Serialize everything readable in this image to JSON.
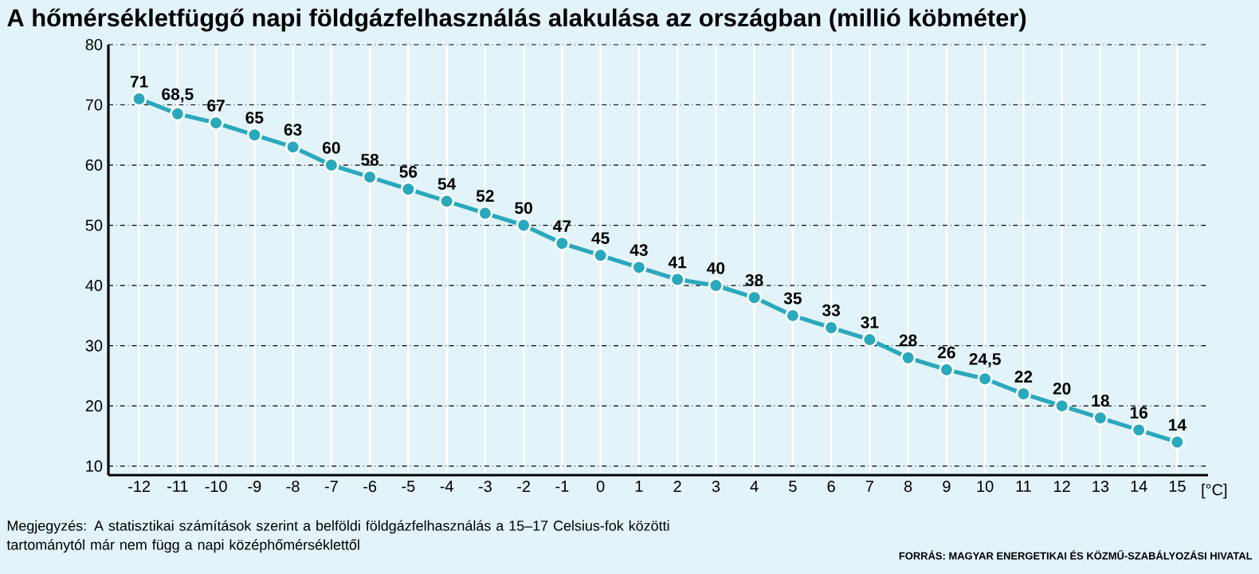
{
  "chart_data": {
    "type": "line",
    "title": "A hőmérsékletfüggő napi földgázfelhasználás alakulása az országban (millió köbméter)",
    "xlabel": "[°C]",
    "x": [
      -12,
      -11,
      -10,
      -9,
      -8,
      -7,
      -6,
      -5,
      -4,
      -3,
      -2,
      -1,
      0,
      1,
      2,
      3,
      4,
      5,
      6,
      7,
      8,
      9,
      10,
      11,
      12,
      13,
      14,
      15
    ],
    "series": [
      {
        "color": "#2aa8bc",
        "values": [
          71,
          68.5,
          67,
          65,
          63,
          60,
          58,
          56,
          54,
          52,
          50,
          47,
          45,
          43,
          41,
          40,
          38,
          35,
          33,
          31,
          28,
          26,
          24.5,
          22,
          20,
          18,
          16,
          14
        ],
        "value_labels": [
          "71",
          "68,5",
          "67",
          "65",
          "63",
          "60",
          "58",
          "56",
          "54",
          "52",
          "50",
          "47",
          "45",
          "43",
          "41",
          "40",
          "38",
          "35",
          "33",
          "31",
          "28",
          "26",
          "24,5",
          "22",
          "20",
          "18",
          "16",
          "14"
        ]
      }
    ],
    "xlim": [
      -12.8,
      15.8
    ],
    "ylim": [
      8.5,
      80
    ],
    "xticks": [
      -12,
      -11,
      -10,
      -9,
      -8,
      -7,
      -6,
      -5,
      -4,
      -3,
      -2,
      -1,
      0,
      1,
      2,
      3,
      4,
      5,
      6,
      7,
      8,
      9,
      10,
      11,
      12,
      13,
      14,
      15
    ],
    "yticks": [
      10,
      20,
      30,
      40,
      50,
      60,
      70,
      80
    ],
    "grid": true,
    "marker": "circle",
    "line_style": "solid",
    "annotations": [
      "Megjegyzés: A statisztikai számítások szerint a belföldi földgázfelhasználás a 15–17 Celsius-fok közötti tartománytól már nem függ a napi középhőmérséklettől",
      "FORRÁS: MAGYAR ENERGETIKAI ÉS KÖZMŰ-SZABÁLYOZÁSI HIVATAL"
    ]
  }
}
